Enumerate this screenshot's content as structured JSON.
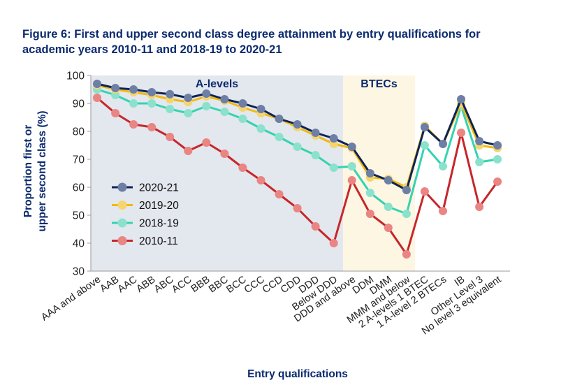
{
  "chart_data": {
    "type": "line",
    "title_line1": "Figure 6: First and upper second class degree attainment by entry qualifications for",
    "title_line2": "academic years 2010-11 and 2018-19 to 2020-21",
    "ylabel_line1": "Proportion first or",
    "ylabel_line2": "upper second class (%)",
    "xlabel": "Entry qualifications",
    "ylim": [
      30,
      100
    ],
    "yticks": [
      30,
      40,
      50,
      60,
      70,
      80,
      90,
      100
    ],
    "grid": false,
    "legend_position": "left",
    "categories": [
      "AAA and above",
      "AAB",
      "AAC",
      "ABB",
      "ABC",
      "ACC",
      "BBB",
      "BBC",
      "BCC",
      "CCC",
      "CCD",
      "CDD",
      "DDD",
      "Below DDD",
      "DDD and above",
      "DDM",
      "DMM",
      "MMM and below",
      "2 A-levels 1 BTEC",
      "1 A-level 2 BTECs",
      "IB",
      "Other Level 3",
      "No level 3 equivalent"
    ],
    "regions": [
      {
        "label": "A-levels",
        "from": 0,
        "to": 13,
        "color": "#e3e7ee"
      },
      {
        "label": "BTECs",
        "from": 14,
        "to": 17,
        "color": "#fdf6e3"
      }
    ],
    "segments": [
      [
        0,
        13
      ],
      [
        13,
        17
      ],
      [
        17,
        22
      ]
    ],
    "series": [
      {
        "name": "2020-21",
        "color": "#0d2457",
        "marker": "#6e7fa6",
        "values": [
          97,
          95.5,
          95,
          94,
          93.3,
          92,
          93.5,
          91.5,
          90,
          88,
          84.5,
          82.5,
          79.5,
          77.5,
          74.5,
          65,
          62.5,
          59,
          81.5,
          75.5,
          91.5,
          76.5,
          75
        ]
      },
      {
        "name": "2019-20",
        "color": "#f0b912",
        "marker": "#f5d56e",
        "values": [
          96.5,
          95,
          94,
          93,
          91.5,
          90.5,
          92.5,
          91,
          88.5,
          86.5,
          84.5,
          81.5,
          78.5,
          75.5,
          74,
          63.5,
          63,
          60,
          82,
          75.5,
          90,
          75,
          74
        ]
      },
      {
        "name": "2018-19",
        "color": "#35d3b0",
        "marker": "#8ae2cd",
        "values": [
          95,
          93,
          90,
          90,
          88,
          86.5,
          89,
          87,
          84.5,
          81,
          78,
          74.5,
          71.5,
          67,
          67.5,
          58,
          53,
          50.5,
          75,
          67.5,
          89,
          69,
          70
        ]
      },
      {
        "name": "2010-11",
        "color": "#c7262a",
        "marker": "#e98583",
        "values": [
          92,
          86.5,
          82.5,
          81.5,
          78,
          73,
          76,
          72,
          67,
          62.5,
          57.5,
          52.5,
          46,
          40,
          62.5,
          50.5,
          45.5,
          36,
          58.5,
          51.5,
          79.5,
          53,
          62
        ]
      }
    ]
  }
}
